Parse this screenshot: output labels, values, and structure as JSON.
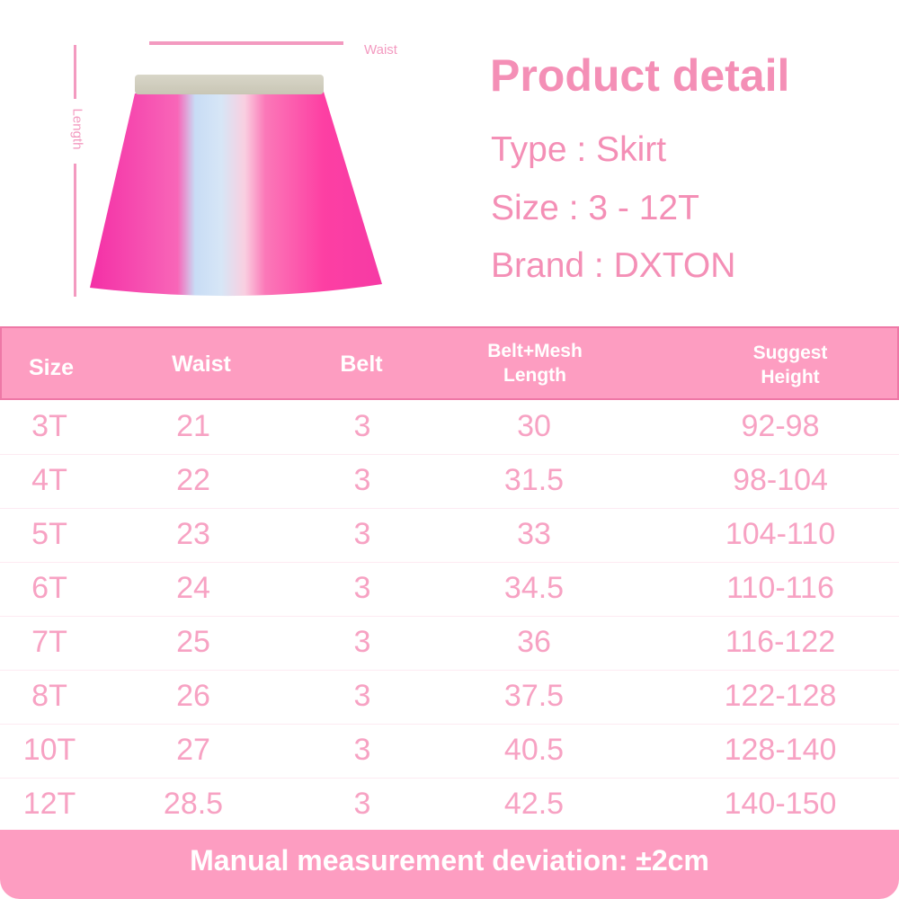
{
  "diagram": {
    "waist_label": "Waist",
    "length_label": "Length"
  },
  "product": {
    "title": "Product detail",
    "lines": [
      "Type : Skirt",
      "Size :  3 - 12T",
      "Brand : DXTON"
    ]
  },
  "table": {
    "headers": [
      "Size",
      "Waist",
      "Belt",
      "Belt+Mesh\nLength",
      "Suggest\nHeight"
    ],
    "rows": [
      [
        "3T",
        "21",
        "3",
        "30",
        "92-98"
      ],
      [
        "4T",
        "22",
        "3",
        "31.5",
        "98-104"
      ],
      [
        "5T",
        "23",
        "3",
        "33",
        "104-110"
      ],
      [
        "6T",
        "24",
        "3",
        "34.5",
        "110-116"
      ],
      [
        "7T",
        "25",
        "3",
        "36",
        "116-122"
      ],
      [
        "8T",
        "26",
        "3",
        "37.5",
        "122-128"
      ],
      [
        "10T",
        "27",
        "3",
        "40.5",
        "128-140"
      ],
      [
        "12T",
        "28.5",
        "3",
        "42.5",
        "140-150"
      ]
    ]
  },
  "footer": {
    "note": "Manual measurement deviation: ±2cm"
  },
  "colors": {
    "accent": "#fd9dc1",
    "text_pink": "#f7a2c3",
    "title_pink": "#f48fb6"
  }
}
